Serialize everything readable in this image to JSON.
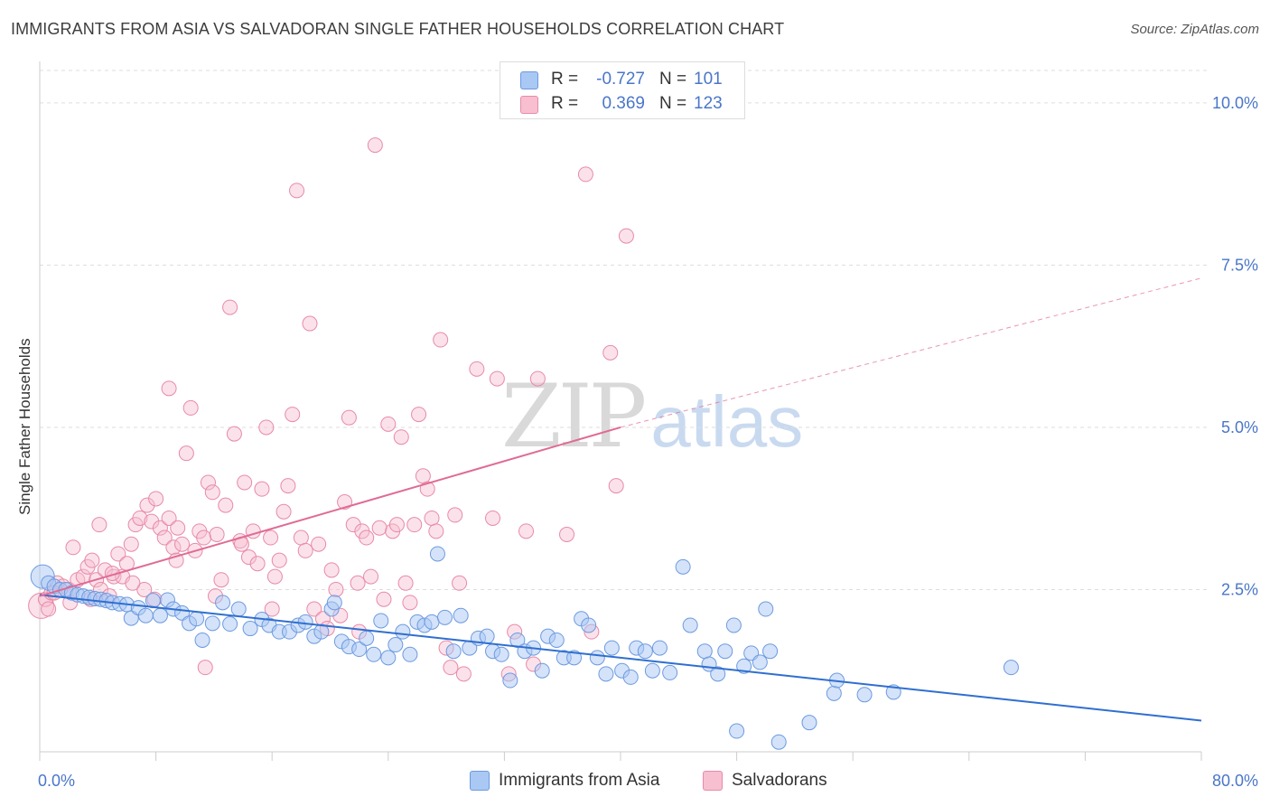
{
  "title": "IMMIGRANTS FROM ASIA VS SALVADORAN SINGLE FATHER HOUSEHOLDS CORRELATION CHART",
  "source": "Source: ZipAtlas.com",
  "watermark": {
    "zip": "ZIP",
    "atlas": "atlas"
  },
  "colors": {
    "blue_fill": "#a9c8f3",
    "blue_stroke": "#6d9ae0",
    "blue_line": "#2f6fd0",
    "pink_fill": "#f7bfd0",
    "pink_stroke": "#e88aa8",
    "pink_line": "#e06a95",
    "grid": "#dddddd",
    "tick_text": "#4a76c9"
  },
  "legend": {
    "rows": [
      {
        "r_label": "R =",
        "r_value": "-0.727",
        "n_label": "N =",
        "n_value": "101"
      },
      {
        "r_label": "R =",
        "r_value": "0.369",
        "n_label": "N =",
        "n_value": "123"
      }
    ],
    "bottom": [
      "Immigrants from Asia",
      "Salvadorans"
    ]
  },
  "chart_data": {
    "type": "scatter",
    "title": "IMMIGRANTS FROM ASIA VS SALVADORAN SINGLE FATHER HOUSEHOLDS CORRELATION CHART",
    "xlabel": "",
    "ylabel": "Single Father Households",
    "xlim": [
      0,
      80
    ],
    "ylim": [
      0,
      10.5
    ],
    "x_ticks": [
      "0.0%",
      "80.0%"
    ],
    "y_ticks": [
      {
        "value": 2.5,
        "label": "2.5%"
      },
      {
        "value": 5.0,
        "label": "5.0%"
      },
      {
        "value": 7.5,
        "label": "7.5%"
      },
      {
        "value": 10.0,
        "label": "10.0%"
      }
    ],
    "grid": true,
    "legend_position": "top-center",
    "series": [
      {
        "name": "Immigrants from Asia",
        "r": -0.727,
        "n": 101,
        "trend": {
          "x0": 0,
          "y0": 2.42,
          "x1": 80,
          "y1": 0.48,
          "dashed_from": null
        },
        "points": [
          [
            0.2,
            2.7
          ],
          [
            0.6,
            2.6
          ],
          [
            1,
            2.55
          ],
          [
            1.4,
            2.5
          ],
          [
            1.8,
            2.5
          ],
          [
            2.2,
            2.45
          ],
          [
            2.6,
            2.42
          ],
          [
            3,
            2.4
          ],
          [
            3.4,
            2.38
          ],
          [
            3.8,
            2.36
          ],
          [
            4.2,
            2.35
          ],
          [
            4.6,
            2.33
          ],
          [
            5,
            2.3
          ],
          [
            5.5,
            2.28
          ],
          [
            6,
            2.27
          ],
          [
            6.3,
            2.06
          ],
          [
            6.8,
            2.22
          ],
          [
            7.3,
            2.1
          ],
          [
            7.8,
            2.33
          ],
          [
            8.3,
            2.1
          ],
          [
            8.8,
            2.34
          ],
          [
            9.2,
            2.2
          ],
          [
            9.8,
            2.14
          ],
          [
            10.3,
            1.98
          ],
          [
            10.8,
            2.05
          ],
          [
            11.2,
            1.72
          ],
          [
            11.9,
            1.98
          ],
          [
            12.6,
            2.3
          ],
          [
            13.1,
            1.97
          ],
          [
            13.7,
            2.2
          ],
          [
            14.5,
            1.9
          ],
          [
            15.3,
            2.04
          ],
          [
            15.8,
            1.95
          ],
          [
            16.5,
            1.85
          ],
          [
            17.2,
            1.85
          ],
          [
            17.8,
            1.95
          ],
          [
            18.3,
            2.0
          ],
          [
            18.9,
            1.78
          ],
          [
            19.4,
            1.85
          ],
          [
            20.1,
            2.2
          ],
          [
            20.3,
            2.3
          ],
          [
            20.8,
            1.7
          ],
          [
            21.3,
            1.62
          ],
          [
            22.0,
            1.58
          ],
          [
            22.5,
            1.75
          ],
          [
            23.0,
            1.5
          ],
          [
            23.5,
            2.02
          ],
          [
            24.0,
            1.45
          ],
          [
            24.5,
            1.65
          ],
          [
            25.0,
            1.85
          ],
          [
            25.5,
            1.5
          ],
          [
            26,
            2.0
          ],
          [
            26.5,
            1.95
          ],
          [
            27,
            2.0
          ],
          [
            27.4,
            3.05
          ],
          [
            27.9,
            2.07
          ],
          [
            28.5,
            1.55
          ],
          [
            29.0,
            2.1
          ],
          [
            29.6,
            1.6
          ],
          [
            30.2,
            1.75
          ],
          [
            30.8,
            1.78
          ],
          [
            31.2,
            1.55
          ],
          [
            31.8,
            1.5
          ],
          [
            32.4,
            1.1
          ],
          [
            32.9,
            1.72
          ],
          [
            33.4,
            1.55
          ],
          [
            34.0,
            1.6
          ],
          [
            34.6,
            1.25
          ],
          [
            35.0,
            1.78
          ],
          [
            35.6,
            1.72
          ],
          [
            36.1,
            1.45
          ],
          [
            36.8,
            1.45
          ],
          [
            37.3,
            2.05
          ],
          [
            37.8,
            1.95
          ],
          [
            38.4,
            1.45
          ],
          [
            39.0,
            1.2
          ],
          [
            39.4,
            1.6
          ],
          [
            40.1,
            1.25
          ],
          [
            40.7,
            1.15
          ],
          [
            41.1,
            1.6
          ],
          [
            41.7,
            1.55
          ],
          [
            42.2,
            1.25
          ],
          [
            42.7,
            1.6
          ],
          [
            43.4,
            1.22
          ],
          [
            44.3,
            2.85
          ],
          [
            44.8,
            1.95
          ],
          [
            45.8,
            1.55
          ],
          [
            46.1,
            1.35
          ],
          [
            46.7,
            1.2
          ],
          [
            47.2,
            1.55
          ],
          [
            47.8,
            1.95
          ],
          [
            48.0,
            0.32
          ],
          [
            48.5,
            1.32
          ],
          [
            49.0,
            1.52
          ],
          [
            49.6,
            1.38
          ],
          [
            50.0,
            2.2
          ],
          [
            50.3,
            1.55
          ],
          [
            50.9,
            0.15
          ],
          [
            53.0,
            0.45
          ],
          [
            54.7,
            0.9
          ],
          [
            54.9,
            1.1
          ],
          [
            56.8,
            0.88
          ],
          [
            58.8,
            0.92
          ],
          [
            66.9,
            1.3
          ]
        ]
      },
      {
        "name": "Salvadorans",
        "r": 0.369,
        "n": 123,
        "trend": {
          "x0": 0,
          "y0": 2.4,
          "x1": 40,
          "y1": 5.0,
          "dashed_to_x": 80,
          "dashed_to_y": 7.3
        },
        "points": [
          [
            0.1,
            2.25
          ],
          [
            0.4,
            2.35
          ],
          [
            0.8,
            2.45
          ],
          [
            1.2,
            2.6
          ],
          [
            1.6,
            2.55
          ],
          [
            2.0,
            2.5
          ],
          [
            2.3,
            3.15
          ],
          [
            2.6,
            2.65
          ],
          [
            3.0,
            2.7
          ],
          [
            3.3,
            2.85
          ],
          [
            3.6,
            2.95
          ],
          [
            3.9,
            2.65
          ],
          [
            4.2,
            2.5
          ],
          [
            4.5,
            2.8
          ],
          [
            4.8,
            2.4
          ],
          [
            5.1,
            2.7
          ],
          [
            4.1,
            3.5
          ],
          [
            5.4,
            3.05
          ],
          [
            5.7,
            2.7
          ],
          [
            6.0,
            2.9
          ],
          [
            6.3,
            3.2
          ],
          [
            6.6,
            3.5
          ],
          [
            6.9,
            3.6
          ],
          [
            7.2,
            2.5
          ],
          [
            7.4,
            3.8
          ],
          [
            7.7,
            3.55
          ],
          [
            8.0,
            3.9
          ],
          [
            8.3,
            3.45
          ],
          [
            8.6,
            3.3
          ],
          [
            8.9,
            3.6
          ],
          [
            9.2,
            3.15
          ],
          [
            9.5,
            3.45
          ],
          [
            8.9,
            5.6
          ],
          [
            9.8,
            3.2
          ],
          [
            10.1,
            4.6
          ],
          [
            10.4,
            5.3
          ],
          [
            10.7,
            3.1
          ],
          [
            11.0,
            3.4
          ],
          [
            11.3,
            3.3
          ],
          [
            11.6,
            4.15
          ],
          [
            11.9,
            4.0
          ],
          [
            11.4,
            1.3
          ],
          [
            12.2,
            3.35
          ],
          [
            12.5,
            2.65
          ],
          [
            12.8,
            3.8
          ],
          [
            13.1,
            6.85
          ],
          [
            13.4,
            4.9
          ],
          [
            13.8,
            3.25
          ],
          [
            14.1,
            4.15
          ],
          [
            14.4,
            3.0
          ],
          [
            14.7,
            3.4
          ],
          [
            15.0,
            2.9
          ],
          [
            15.3,
            4.05
          ],
          [
            15.6,
            5.0
          ],
          [
            15.9,
            3.3
          ],
          [
            16.2,
            2.7
          ],
          [
            16.5,
            2.95
          ],
          [
            16.8,
            3.7
          ],
          [
            17.1,
            4.1
          ],
          [
            17.4,
            5.2
          ],
          [
            17.7,
            8.65
          ],
          [
            18.0,
            3.3
          ],
          [
            18.3,
            3.1
          ],
          [
            18.6,
            6.6
          ],
          [
            18.9,
            2.2
          ],
          [
            19.2,
            3.2
          ],
          [
            19.5,
            2.05
          ],
          [
            19.8,
            1.9
          ],
          [
            20.1,
            2.8
          ],
          [
            20.4,
            2.5
          ],
          [
            20.7,
            2.1
          ],
          [
            21.0,
            3.85
          ],
          [
            21.3,
            5.15
          ],
          [
            21.6,
            3.5
          ],
          [
            21.9,
            2.6
          ],
          [
            22.2,
            3.4
          ],
          [
            22.5,
            3.3
          ],
          [
            22.8,
            2.7
          ],
          [
            23.1,
            9.35
          ],
          [
            23.4,
            3.45
          ],
          [
            23.7,
            2.35
          ],
          [
            24.0,
            5.05
          ],
          [
            24.3,
            3.4
          ],
          [
            24.6,
            3.5
          ],
          [
            24.9,
            4.85
          ],
          [
            25.2,
            2.6
          ],
          [
            25.5,
            2.3
          ],
          [
            25.8,
            3.5
          ],
          [
            26.1,
            5.2
          ],
          [
            26.4,
            4.25
          ],
          [
            26.7,
            4.05
          ],
          [
            27.0,
            3.6
          ],
          [
            27.3,
            3.4
          ],
          [
            27.6,
            6.35
          ],
          [
            28.0,
            1.6
          ],
          [
            28.3,
            1.3
          ],
          [
            28.6,
            3.65
          ],
          [
            28.9,
            2.6
          ],
          [
            29.2,
            1.2
          ],
          [
            30.1,
            5.9
          ],
          [
            31.2,
            3.6
          ],
          [
            31.5,
            5.75
          ],
          [
            32.3,
            1.2
          ],
          [
            32.7,
            1.85
          ],
          [
            33.5,
            3.4
          ],
          [
            34.3,
            5.75
          ],
          [
            34.0,
            1.35
          ],
          [
            36.3,
            3.35
          ],
          [
            37.6,
            8.9
          ],
          [
            38.0,
            1.85
          ],
          [
            39.3,
            6.15
          ],
          [
            39.7,
            4.1
          ],
          [
            40.4,
            7.95
          ],
          [
            13.9,
            3.2
          ],
          [
            12.1,
            2.4
          ],
          [
            9.4,
            2.95
          ],
          [
            7.9,
            2.35
          ],
          [
            6.4,
            2.6
          ],
          [
            5.0,
            2.75
          ],
          [
            3.5,
            2.35
          ],
          [
            2.1,
            2.3
          ],
          [
            1.0,
            2.45
          ],
          [
            0.6,
            2.2
          ],
          [
            16.0,
            2.2
          ],
          [
            22.0,
            1.85
          ]
        ]
      }
    ]
  }
}
